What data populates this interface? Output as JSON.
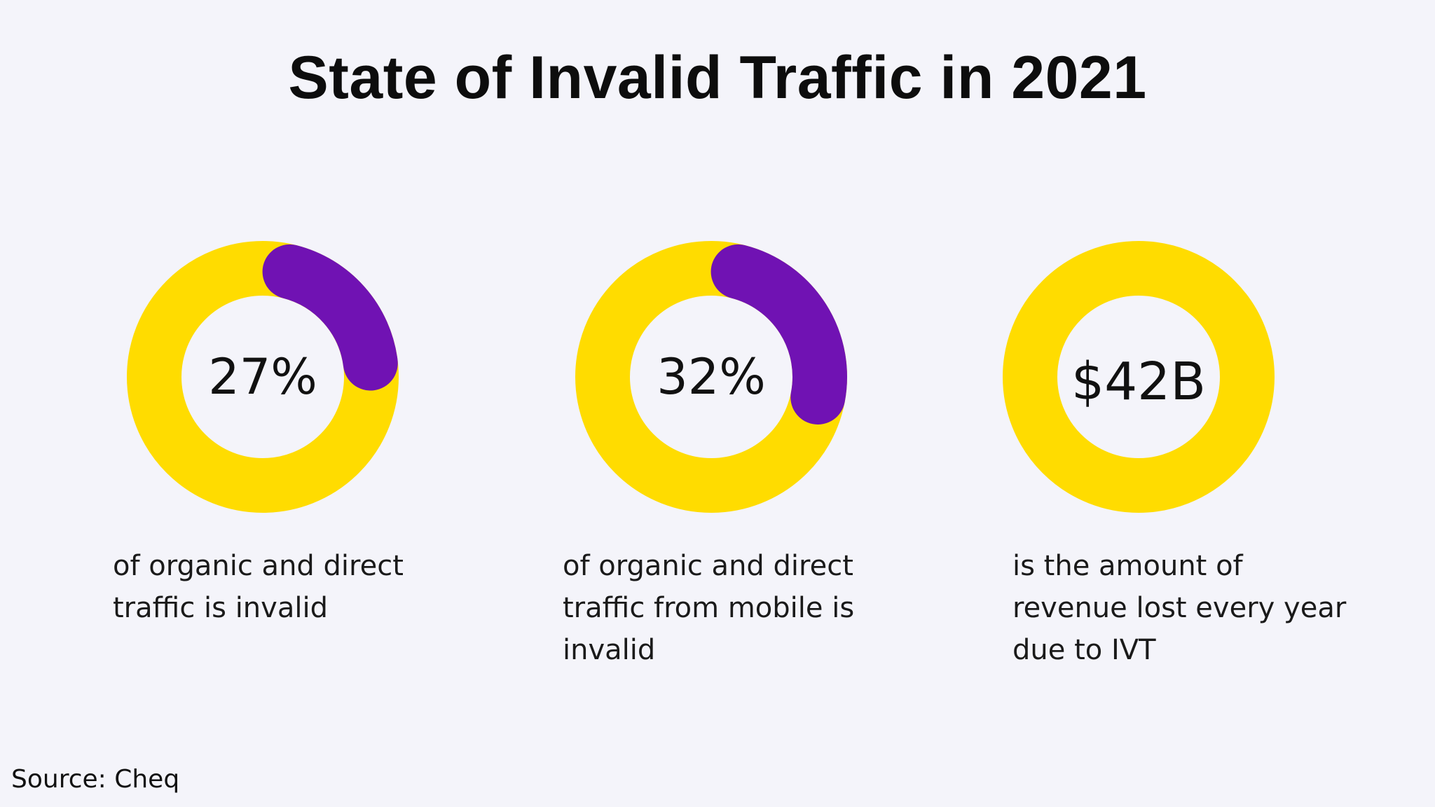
{
  "title": "State of Invalid Traffic in 2021",
  "source": "Source: Cheq",
  "colors": {
    "ring": "#ffdc00",
    "highlight": "#7012b3",
    "background": "#f4f4fa"
  },
  "chart_data": [
    {
      "type": "pie",
      "label": "27%",
      "value": 27,
      "caption": [
        "of organic and direct",
        "traffic is invalid"
      ]
    },
    {
      "type": "pie",
      "label": "32%",
      "value": 32,
      "caption": [
        "of organic and direct",
        "traffic from mobile is",
        "invalid"
      ]
    },
    {
      "type": "pie",
      "label": "$42B",
      "value": null,
      "caption": [
        "is the amount of",
        "revenue lost every year",
        "due to IVT"
      ]
    }
  ]
}
